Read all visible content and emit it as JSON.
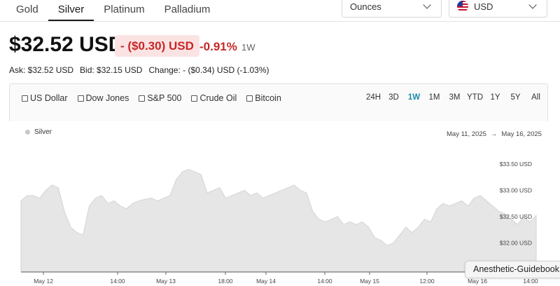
{
  "metal_tabs": [
    {
      "label": "Gold",
      "active": false
    },
    {
      "label": "Silver",
      "active": true
    },
    {
      "label": "Platinum",
      "active": false
    },
    {
      "label": "Palladium",
      "active": false
    }
  ],
  "unit_select": {
    "value": "Ounces"
  },
  "currency_select": {
    "value": "USD",
    "icon": "us-flag-icon"
  },
  "price": {
    "current": "$32.52 USD",
    "change": "- ($0.30) USD",
    "change_pct": "-0.91%",
    "period": "1W"
  },
  "stats": {
    "ask": "Ask: $32.52 USD",
    "bid": "Bid: $32.15 USD",
    "change": "Change: - ($0.34) USD (-1.03%)"
  },
  "compare": [
    "US Dollar",
    "Dow Jones",
    "S&P 500",
    "Crude Oil",
    "Bitcoin"
  ],
  "ranges": [
    {
      "label": "24H",
      "active": false
    },
    {
      "label": "3D",
      "active": false
    },
    {
      "label": "1W",
      "active": true
    },
    {
      "label": "1M",
      "active": false
    },
    {
      "label": "3M",
      "active": false
    },
    {
      "label": "YTD",
      "active": false
    },
    {
      "label": "1Y",
      "active": false
    },
    {
      "label": "5Y",
      "active": false
    },
    {
      "label": "All",
      "active": false
    }
  ],
  "date_range": {
    "start": "May 11, 2025",
    "arrow": "→",
    "end": "May 16, 2025"
  },
  "tooltip": "Anesthetic-Guidebook",
  "colors": {
    "negative": "#c62828",
    "active_range": "#1a8ba8",
    "area_fill": "#e6e6e6",
    "area_line": "#d4d4d4"
  },
  "chart_data": {
    "type": "area",
    "series": [
      {
        "name": "Silver",
        "values": [
          32.8,
          32.9,
          32.9,
          32.85,
          33.0,
          33.1,
          33.05,
          32.6,
          32.3,
          32.2,
          32.15,
          32.7,
          32.85,
          32.9,
          32.75,
          32.8,
          32.7,
          32.65,
          32.75,
          32.8,
          32.83,
          32.85,
          32.8,
          32.85,
          32.9,
          33.2,
          33.35,
          33.4,
          33.35,
          33.3,
          32.95,
          33.0,
          33.05,
          32.85,
          32.9,
          32.95,
          33.0,
          32.9,
          32.95,
          32.85,
          32.9,
          32.95,
          33.0,
          33.05,
          33.1,
          33.0,
          32.95,
          32.6,
          32.45,
          32.4,
          32.45,
          32.5,
          32.35,
          32.4,
          32.35,
          32.4,
          32.3,
          32.1,
          32.05,
          31.95,
          32.0,
          32.15,
          32.3,
          32.2,
          32.3,
          32.45,
          32.4,
          32.65,
          32.75,
          32.7,
          32.75,
          32.8,
          32.7,
          32.85,
          32.9,
          32.8,
          32.7,
          32.6,
          32.55,
          32.45,
          32.35,
          32.5,
          32.4,
          32.52
        ]
      }
    ],
    "x_ticks": [
      "May 12",
      "14:00",
      "May 13",
      "18:00",
      "May 14",
      "14:00",
      "May 15",
      "12:00",
      "May 16",
      "14:00"
    ],
    "y_ticks": [
      "$33.50 USD",
      "$33.00 USD",
      "$32.50 USD",
      "$32.00 USD"
    ],
    "y_tick_values": [
      33.5,
      33.0,
      32.5,
      32.0
    ],
    "ylim": [
      31.45,
      33.95
    ],
    "legend": "top-left",
    "grid": false
  }
}
